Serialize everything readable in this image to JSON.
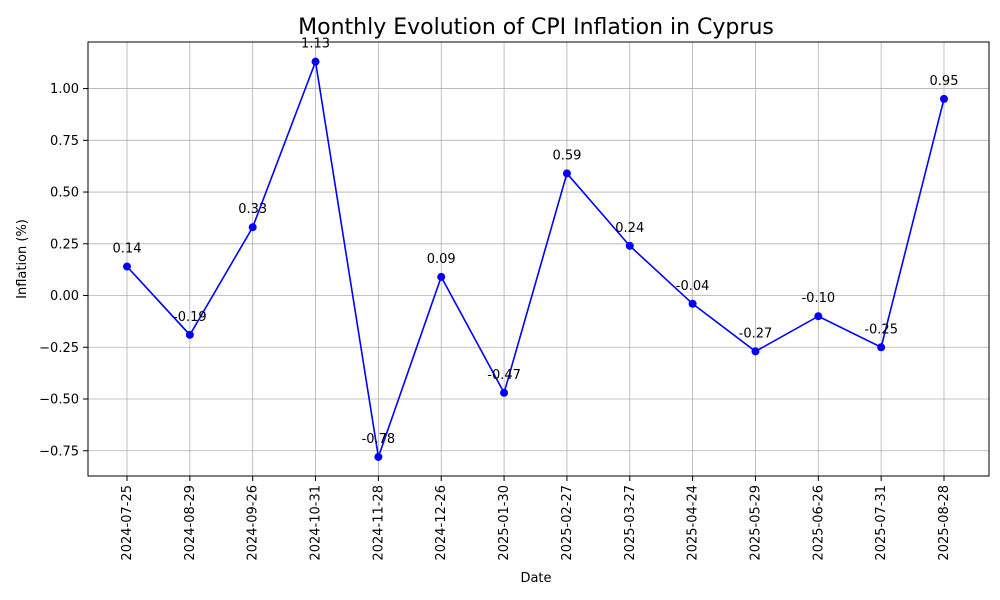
{
  "chart_data": {
    "type": "line",
    "title": "Monthly Evolution of CPI Inflation in Cyprus",
    "xlabel": "Date",
    "ylabel": "Inflation (%)",
    "categories": [
      "2024-07-25",
      "2024-08-29",
      "2024-09-26",
      "2024-10-31",
      "2024-11-28",
      "2024-12-26",
      "2025-01-30",
      "2025-02-27",
      "2025-03-27",
      "2025-04-24",
      "2025-05-29",
      "2025-06-26",
      "2025-07-31",
      "2025-08-28"
    ],
    "series": [
      {
        "name": "Inflation",
        "color": "#0000ff",
        "values": [
          0.14,
          -0.19,
          0.33,
          1.13,
          -0.78,
          0.09,
          -0.47,
          0.59,
          0.24,
          -0.04,
          -0.27,
          -0.1,
          -0.25,
          0.95
        ],
        "labels": [
          "0.14",
          "-0.19",
          "0.33",
          "1.13",
          "-0.78",
          "0.09",
          "-0.47",
          "0.59",
          "0.24",
          "-0.04",
          "-0.27",
          "-0.10",
          "-0.25",
          "0.95"
        ]
      }
    ],
    "yticks": [
      -0.75,
      -0.5,
      -0.25,
      0.0,
      0.25,
      0.5,
      0.75,
      1.0
    ],
    "ytick_labels": [
      "−0.75",
      "−0.50",
      "−0.25",
      "0.00",
      "0.25",
      "0.50",
      "0.75",
      "1.00"
    ],
    "ylim": [
      -0.872,
      1.225
    ],
    "grid": true,
    "legend": "none"
  }
}
